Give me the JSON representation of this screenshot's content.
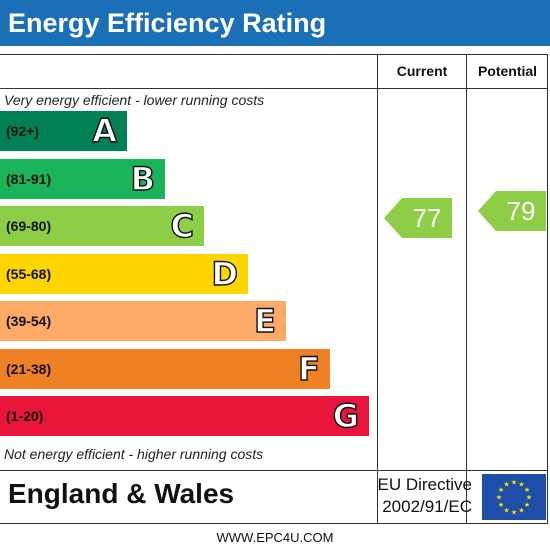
{
  "header": {
    "title": "Energy Efficiency Rating"
  },
  "columns": {
    "current": "Current",
    "potential": "Potential"
  },
  "notes": {
    "top": "Very energy efficient - lower running costs",
    "bottom": "Not energy efficient - higher running costs"
  },
  "bands": [
    {
      "range": "(92+)",
      "letter": "A",
      "color": "#008054",
      "length": 0.23
    },
    {
      "range": "(81-91)",
      "letter": "B",
      "color": "#19b459",
      "length": 0.3
    },
    {
      "range": "(69-80)",
      "letter": "C",
      "color": "#8dce46",
      "length": 0.37
    },
    {
      "range": "(55-68)",
      "letter": "D",
      "color": "#ffd500",
      "length": 0.45
    },
    {
      "range": "(39-54)",
      "letter": "E",
      "color": "#fcaa65",
      "length": 0.52
    },
    {
      "range": "(21-38)",
      "letter": "F",
      "color": "#ef8023",
      "length": 0.6
    },
    {
      "range": "(1-20)",
      "letter": "G",
      "color": "#e9153b",
      "length": 0.67
    }
  ],
  "ratings": {
    "current": {
      "value": "77",
      "color": "#8dce46"
    },
    "potential": {
      "value": "79",
      "color": "#8dce46"
    }
  },
  "footer": {
    "region": "England & Wales",
    "directive_line1": "EU Directive",
    "directive_line2": "2002/91/EC"
  },
  "website": "WWW.EPC4U.COM"
}
